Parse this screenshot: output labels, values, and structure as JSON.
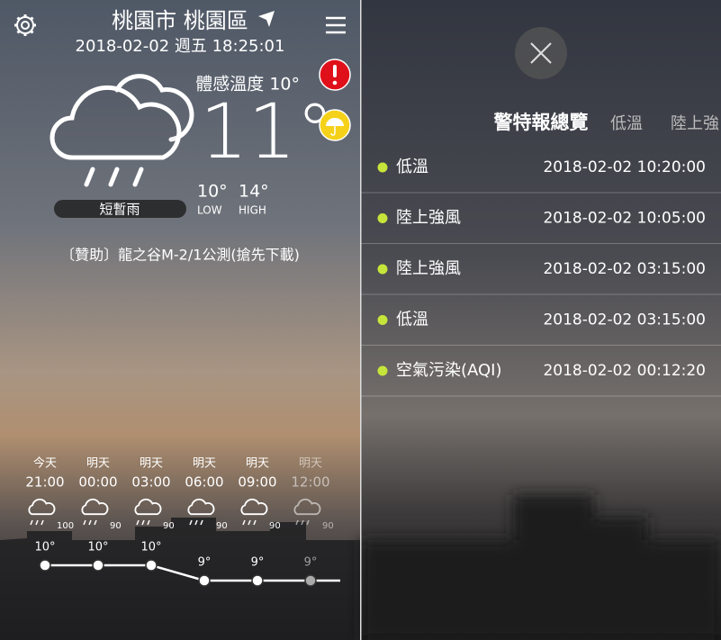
{
  "left": {
    "location": "桃園市 桃園區",
    "datetime": "2018-02-02 週五 18:25:01",
    "feels_like": "體感溫度 10°",
    "temperature": "11°",
    "condition": "短暫雨",
    "temp_low": "10°",
    "temp_high": "14°",
    "low_label": "LOW",
    "high_label": "HIGH",
    "sponsor": "〔贊助〕龍之谷M-2/1公測(搶先下載)",
    "hourly": [
      {
        "day": "今天",
        "time": "21:00",
        "rain": 100,
        "temp": {
          "value": 10,
          "label": "10°"
        }
      },
      {
        "day": "明天",
        "time": "00:00",
        "rain": 90,
        "temp": {
          "value": 10,
          "label": "10°"
        }
      },
      {
        "day": "明天",
        "time": "03:00",
        "rain": 90,
        "temp": {
          "value": 10,
          "label": "10°"
        }
      },
      {
        "day": "明天",
        "time": "06:00",
        "rain": 90,
        "temp": {
          "value": 9,
          "label": "9°"
        }
      },
      {
        "day": "明天",
        "time": "09:00",
        "rain": 90,
        "temp": {
          "value": 9,
          "label": "9°"
        }
      },
      {
        "day": "明天",
        "time": "12:00",
        "rain": 90,
        "temp": {
          "value": 9,
          "label": "9°"
        }
      }
    ]
  },
  "right": {
    "title": "警特報總覽",
    "tabs": [
      "低溫",
      "陸上強"
    ],
    "alerts": [
      {
        "name": "低溫",
        "time": "2018-02-02 10:20:00"
      },
      {
        "name": "陸上強風",
        "time": "2018-02-02 10:05:00"
      },
      {
        "name": "陸上強風",
        "time": "2018-02-02 03:15:00"
      },
      {
        "name": "低溫",
        "time": "2018-02-02 03:15:00"
      },
      {
        "name": "空氣污染(AQI)",
        "time": "2018-02-02 00:12:20"
      }
    ]
  }
}
